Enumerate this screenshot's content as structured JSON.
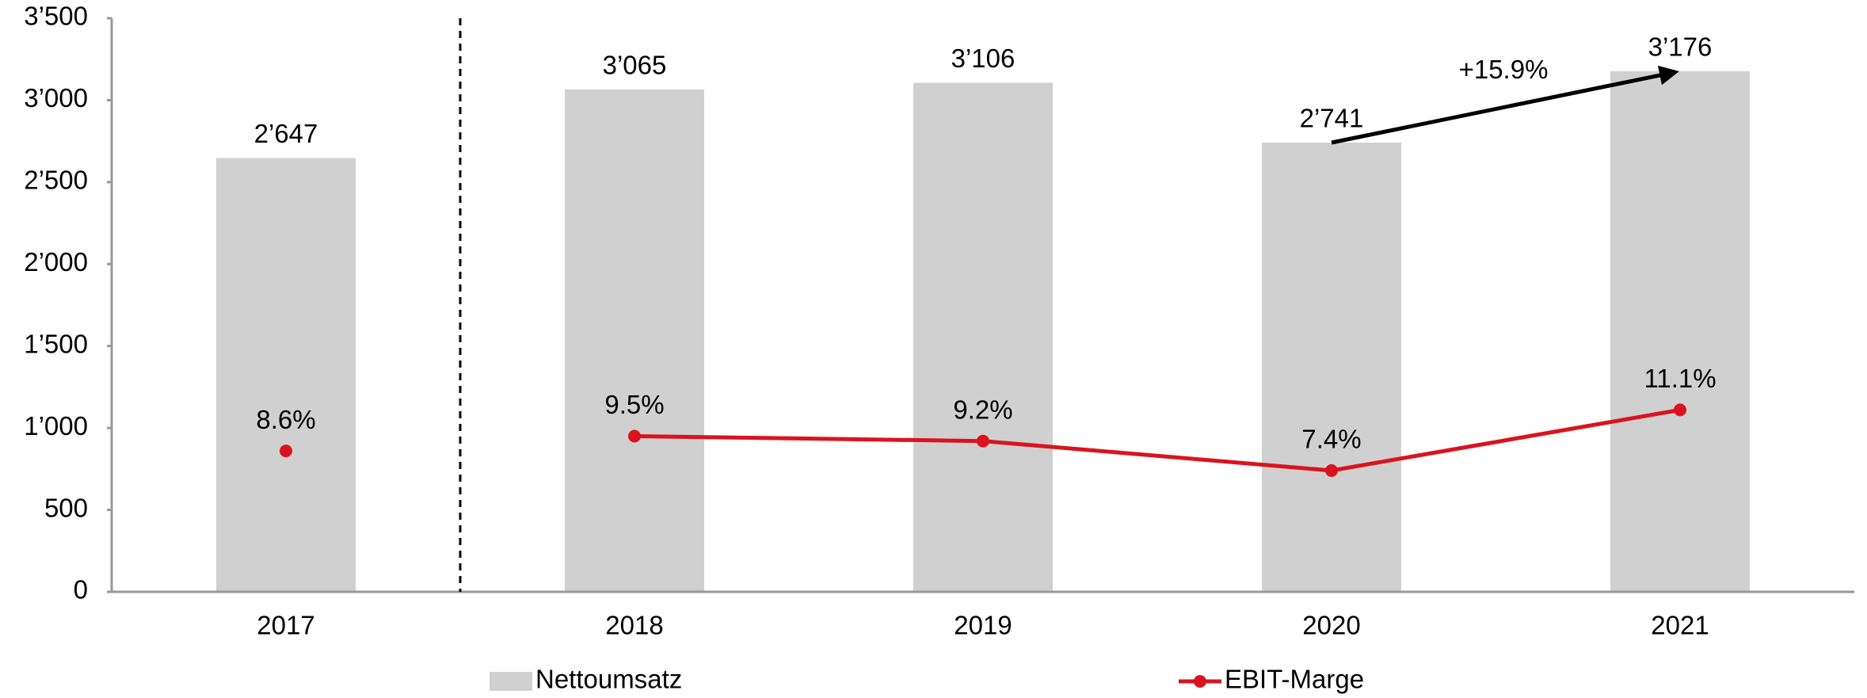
{
  "chart_data": {
    "type": "bar",
    "categories": [
      "2017",
      "2018",
      "2019",
      "2020",
      "2021"
    ],
    "series": [
      {
        "name": "Nettoumsatz",
        "type": "bar",
        "color": "#d0d0d0",
        "values": [
          2647,
          3065,
          3106,
          2741,
          3176
        ],
        "value_labels": [
          "2’647",
          "3’065",
          "3’106",
          "2’741",
          "3’176"
        ]
      },
      {
        "name": "EBIT-Marge",
        "type": "line",
        "axis": "y2",
        "color": "#d9141e",
        "values": [
          8.6,
          9.5,
          9.2,
          7.4,
          11.1
        ],
        "value_labels": [
          "8.6%",
          "9.5%",
          "9.2%",
          "7.4%",
          "11.1%"
        ]
      }
    ],
    "ylim": [
      0,
      3500
    ],
    "yticks": [
      0,
      500,
      {
        "value": 1000,
        "label": "1’000"
      },
      {
        "value": 1500,
        "label": "1’500"
      },
      {
        "value": 2000,
        "label": "2’000"
      },
      {
        "value": 2500,
        "label": "2’500"
      },
      {
        "value": 3000,
        "label": "3’000"
      },
      {
        "value": 3500,
        "label": "3’500"
      }
    ],
    "y2lim": [
      0,
      35
    ],
    "divider_after_index": 0,
    "annotation": "+15.9%",
    "legend": "bottom",
    "grid": false
  }
}
